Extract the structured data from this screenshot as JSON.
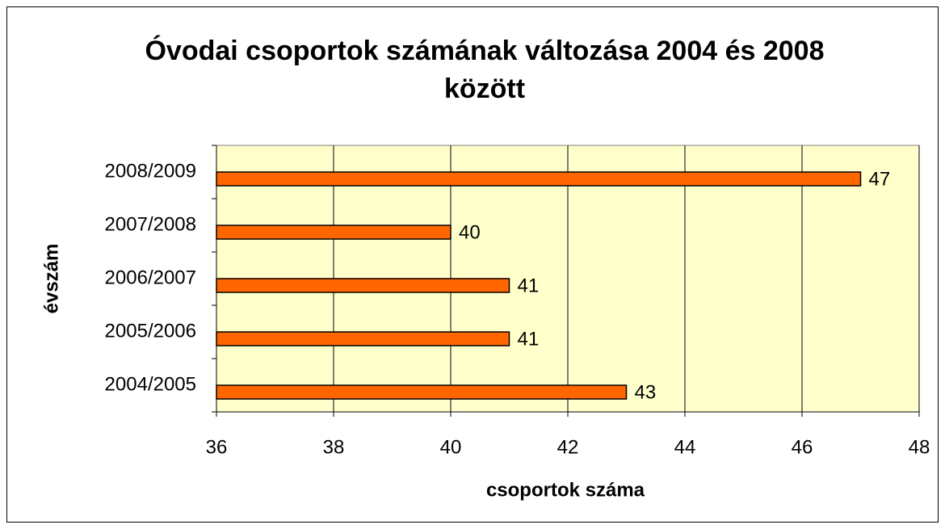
{
  "chart_data": {
    "type": "bar",
    "orientation": "horizontal",
    "title": "Óvodai csoportok számának változása 2004 és 2008 között",
    "x_label": "csoportok száma",
    "y_label": "évszám",
    "categories": [
      "2004/2005",
      "2005/2006",
      "2006/2007",
      "2007/2008",
      "2008/2009"
    ],
    "values": [
      43,
      41,
      41,
      40,
      47
    ],
    "color": "#ff6600",
    "xlim": [
      36,
      48
    ],
    "xticks": [
      36,
      38,
      40,
      42,
      44,
      46,
      48
    ],
    "grid": true
  }
}
